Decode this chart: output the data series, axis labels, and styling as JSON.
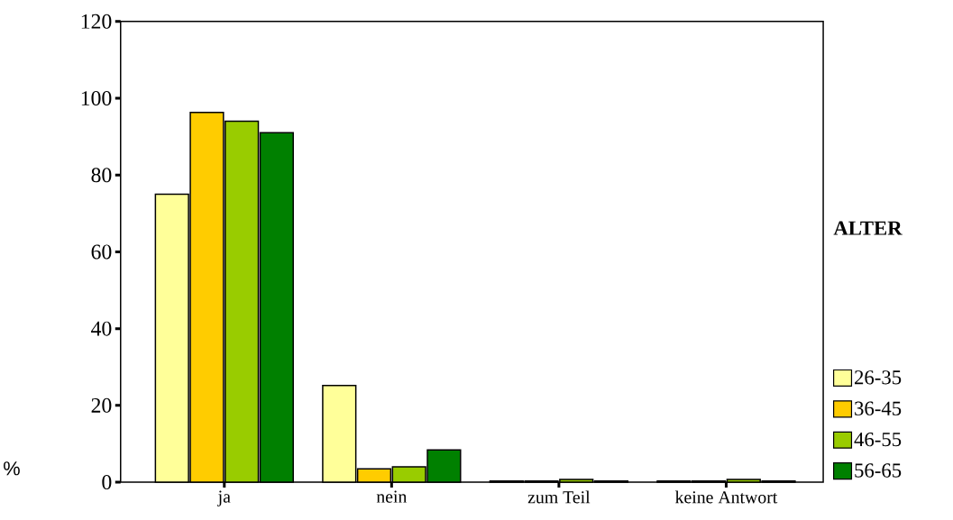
{
  "chart_data": {
    "type": "bar",
    "ylabel": "%",
    "legend_title": "ALTER",
    "legend": "right",
    "categories": [
      "ja",
      "nein",
      "zum Teil",
      "keine Antwort"
    ],
    "series": [
      {
        "name": "26-35",
        "color": "#ffff99",
        "values": [
          75,
          25.2,
          0.3,
          0.3
        ]
      },
      {
        "name": "36-45",
        "color": "#ffcc00",
        "values": [
          96.3,
          3.5,
          0.3,
          0.3
        ]
      },
      {
        "name": "46-55",
        "color": "#99cc00",
        "values": [
          94,
          4,
          0.7,
          0.7
        ]
      },
      {
        "name": "56-65",
        "color": "#008000",
        "values": [
          91,
          8.4,
          0.3,
          0.3
        ]
      }
    ],
    "ylim": [
      0,
      120
    ],
    "yticks": [
      0,
      20,
      40,
      60,
      80,
      100,
      120
    ],
    "grid": false
  }
}
